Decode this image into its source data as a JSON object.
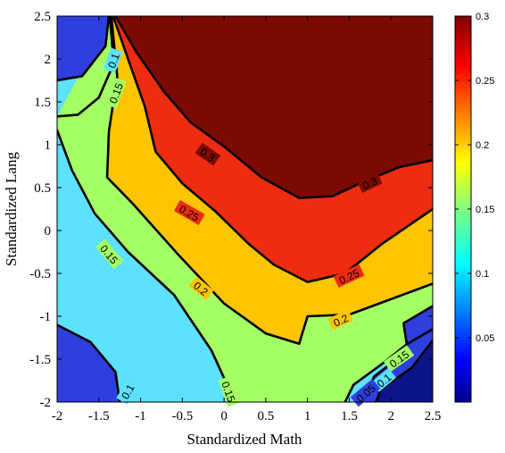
{
  "chart_data": {
    "type": "contour",
    "title": "",
    "xlabel": "Standardized Math",
    "ylabel": "Standardized Lang",
    "xlim": [
      -2,
      2.5
    ],
    "ylim": [
      -2,
      2.5
    ],
    "xticks": [
      "-2",
      "-1.5",
      "-1",
      "-0.5",
      "0",
      "0.5",
      "1",
      "1.5",
      "2",
      "2.5"
    ],
    "yticks": [
      "-2",
      "-1.5",
      "-1",
      "-0.5",
      "0",
      "0.5",
      "1",
      "1.5",
      "2",
      "2.5"
    ],
    "grid": false,
    "colorbar": {
      "colormap": "jet",
      "range": [
        0,
        0.3
      ],
      "ticks": [
        "0.05",
        "0.1",
        "0.15",
        "0.2",
        "0.25",
        "0.3"
      ],
      "placement": "right"
    },
    "levels": [
      {
        "value": 0.3,
        "color": "#7d0a00"
      },
      {
        "value": 0.25,
        "color": "#ee2c12"
      },
      {
        "value": 0.2,
        "color": "#fcc500"
      },
      {
        "value": 0.15,
        "color": "#a4ff64"
      },
      {
        "value": 0.1,
        "color": "#5ce1ff"
      },
      {
        "value": 0.05,
        "color": "#2e3fde"
      },
      {
        "value": 0.0,
        "color": "#0c1588"
      }
    ],
    "contours": [
      {
        "level": 0.3,
        "path": [
          [
            -1.3,
            2.5
          ],
          [
            -1.05,
            2.08
          ],
          [
            -0.72,
            1.62
          ],
          [
            -0.4,
            1.26
          ],
          [
            0.0,
            0.98
          ],
          [
            0.45,
            0.62
          ],
          [
            0.9,
            0.38
          ],
          [
            1.3,
            0.4
          ],
          [
            1.65,
            0.56
          ],
          [
            2.1,
            0.74
          ],
          [
            2.5,
            0.82
          ]
        ],
        "labels": [
          {
            "text": "0.3",
            "x": -0.2,
            "y": 0.88,
            "rot": 35
          },
          {
            "text": "0.3",
            "x": 1.75,
            "y": 0.55,
            "rot": -25
          }
        ]
      },
      {
        "level": 0.25,
        "path": [
          [
            -1.33,
            2.5
          ],
          [
            -1.15,
            2.0
          ],
          [
            -0.95,
            1.45
          ],
          [
            -0.82,
            0.92
          ],
          [
            -0.5,
            0.55
          ],
          [
            -0.1,
            0.22
          ],
          [
            0.3,
            -0.16
          ],
          [
            0.6,
            -0.4
          ],
          [
            1.0,
            -0.6
          ],
          [
            1.45,
            -0.5
          ],
          [
            1.9,
            -0.15
          ],
          [
            2.5,
            0.25
          ]
        ],
        "labels": [
          {
            "text": "0.25",
            "x": -0.42,
            "y": 0.2,
            "rot": 30
          },
          {
            "text": "0.25",
            "x": 1.5,
            "y": -0.54,
            "rot": -25
          }
        ]
      },
      {
        "level": 0.2,
        "path": [
          [
            -1.35,
            2.5
          ],
          [
            -1.28,
            1.8
          ],
          [
            -1.38,
            1.15
          ],
          [
            -1.4,
            0.62
          ],
          [
            -1.1,
            0.32
          ],
          [
            -0.55,
            -0.28
          ],
          [
            0.0,
            -0.85
          ],
          [
            0.5,
            -1.2
          ],
          [
            0.9,
            -1.32
          ],
          [
            1.0,
            -1.0
          ],
          [
            1.5,
            -0.98
          ],
          [
            2.5,
            -0.62
          ]
        ],
        "labels": [
          {
            "text": "0.2",
            "x": -0.28,
            "y": -0.68,
            "rot": 40
          },
          {
            "text": "0.2",
            "x": 1.4,
            "y": -1.05,
            "rot": -25
          }
        ]
      },
      {
        "level": 0.15,
        "path": [
          [
            -1.37,
            2.5
          ],
          [
            -1.32,
            1.95
          ],
          [
            -1.5,
            1.55
          ],
          [
            -1.75,
            1.35
          ],
          [
            -2.0,
            1.33
          ]
        ],
        "labels": [
          {
            "text": "0.15",
            "x": -1.29,
            "y": 1.6,
            "rot": -70
          }
        ]
      },
      {
        "level": 0.15,
        "path": [
          [
            -2.0,
            1.17
          ],
          [
            -1.82,
            0.7
          ],
          [
            -1.55,
            0.2
          ],
          [
            -1.15,
            -0.25
          ],
          [
            -0.6,
            -0.75
          ],
          [
            -0.15,
            -1.4
          ],
          [
            0.0,
            -1.72
          ],
          [
            0.05,
            -2.0
          ]
        ],
        "labels": [
          {
            "text": "0.15",
            "x": -1.38,
            "y": -0.28,
            "rot": 50
          },
          {
            "text": "0.15",
            "x": 0.05,
            "y": -1.88,
            "rot": 70
          }
        ]
      },
      {
        "level": 0.15,
        "path": [
          [
            2.5,
            -1.15
          ],
          [
            2.2,
            -1.32
          ],
          [
            1.9,
            -1.55
          ],
          [
            1.55,
            -1.8
          ],
          [
            1.45,
            -2.0
          ]
        ],
        "labels": [
          {
            "text": "0.15",
            "x": 2.1,
            "y": -1.5,
            "rot": -35
          }
        ]
      },
      {
        "level": 0.1,
        "path": [
          [
            -1.38,
            2.5
          ],
          [
            -1.42,
            2.15
          ],
          [
            -1.7,
            1.8
          ],
          [
            -2.0,
            1.75
          ]
        ],
        "labels": [
          {
            "text": "0.1",
            "x": -1.32,
            "y": 1.98,
            "rot": -70
          }
        ]
      },
      {
        "level": 0.1,
        "path": [
          [
            -2.0,
            -1.1
          ],
          [
            -1.6,
            -1.3
          ],
          [
            -1.3,
            -1.65
          ],
          [
            -1.25,
            -2.0
          ]
        ],
        "labels": [
          {
            "text": "0.1",
            "x": -1.15,
            "y": -1.88,
            "rot": -60
          }
        ]
      },
      {
        "level": 0.1,
        "path": [
          [
            2.5,
            -0.88
          ],
          [
            2.15,
            -1.08
          ],
          [
            2.2,
            -1.4
          ],
          [
            1.8,
            -1.7
          ],
          [
            1.65,
            -2.0
          ]
        ],
        "labels": [
          {
            "text": "0.1",
            "x": 1.92,
            "y": -1.75,
            "rot": -40
          }
        ]
      },
      {
        "level": 0.05,
        "path": [
          [
            2.5,
            -1.28
          ],
          [
            2.25,
            -1.6
          ],
          [
            1.88,
            -1.85
          ],
          [
            1.82,
            -2.0
          ]
        ],
        "labels": [
          {
            "text": "0.05",
            "x": 1.7,
            "y": -1.9,
            "rot": -40
          }
        ]
      }
    ]
  }
}
